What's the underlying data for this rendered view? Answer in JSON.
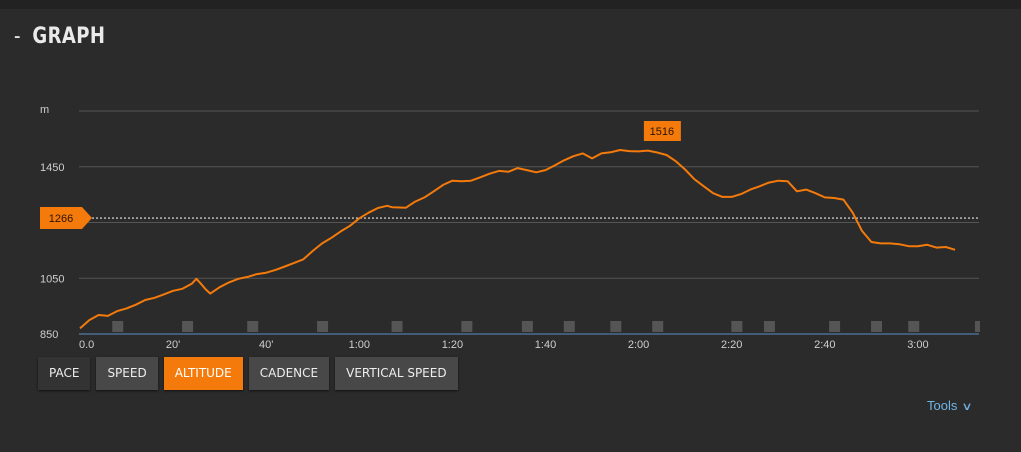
{
  "header": {
    "dash": "-",
    "title": "GRAPH"
  },
  "colors": {
    "background": "#2b2b2b",
    "line": "#f47a0b",
    "grid": "#555555",
    "baseline": "#5a8fc0",
    "marker": "#555555",
    "active_button": "#f47a0b",
    "tools_link": "#6fb5e8"
  },
  "buttons": [
    {
      "label": "PACE",
      "active": false
    },
    {
      "label": "SPEED",
      "active": false
    },
    {
      "label": "ALTITUDE",
      "active": true
    },
    {
      "label": "CADENCE",
      "active": false
    },
    {
      "label": "VERTICAL SPEED",
      "active": false
    }
  ],
  "tools": {
    "label": "Tools",
    "icon": "chevron-down-icon"
  },
  "chart_data": {
    "type": "line",
    "ylabel": "m",
    "ylim": [
      850,
      1650
    ],
    "yticks": [
      850,
      1050,
      1450
    ],
    "ytick_labels": [
      "850",
      "1050",
      "1450"
    ],
    "grid_lines": [
      1050,
      1250,
      1450,
      1650
    ],
    "xlim": [
      0,
      188
    ],
    "xticks": [
      0,
      20,
      40,
      60,
      80,
      100,
      120,
      140,
      160,
      180
    ],
    "xtick_labels": [
      "0.0",
      "20'",
      "40'",
      "1:00",
      "1:20",
      "1:40",
      "2:00",
      "2:20",
      "2:40",
      "3:00"
    ],
    "average": {
      "value": 1266,
      "label": "1266"
    },
    "max": {
      "value": 1516,
      "label": "1516",
      "x": 125
    },
    "lap_markers": [
      8,
      23,
      37,
      52,
      68,
      83,
      96,
      105,
      115,
      124,
      141,
      148,
      162,
      171,
      179,
      193
    ],
    "series": [
      {
        "x": [
          0,
          2,
          4,
          6,
          8,
          10,
          12,
          14,
          16,
          18,
          20,
          22,
          24,
          25,
          26,
          27,
          28,
          30,
          32,
          34,
          36,
          38,
          40,
          42,
          44,
          46,
          48,
          50,
          52,
          54,
          56,
          58,
          60,
          62,
          64,
          66,
          67,
          68,
          70,
          72,
          74,
          76,
          78,
          80,
          82,
          84,
          86,
          88,
          90,
          92,
          94,
          96,
          98,
          100,
          102,
          104,
          106,
          108,
          110,
          112,
          114,
          116,
          118,
          120,
          122,
          124,
          126,
          128,
          130,
          132,
          134,
          136,
          138,
          140,
          142,
          144,
          146,
          148,
          150,
          152,
          154,
          156,
          158,
          160,
          162,
          164,
          166,
          168,
          170,
          172,
          174,
          176,
          178,
          180,
          182,
          184,
          186,
          188
        ],
        "y": [
          870,
          900,
          918,
          915,
          932,
          942,
          955,
          972,
          980,
          992,
          1005,
          1012,
          1030,
          1048,
          1030,
          1010,
          995,
          1018,
          1035,
          1048,
          1055,
          1065,
          1070,
          1080,
          1092,
          1105,
          1118,
          1148,
          1175,
          1195,
          1218,
          1238,
          1265,
          1285,
          1302,
          1310,
          1305,
          1304,
          1303,
          1325,
          1340,
          1362,
          1385,
          1400,
          1398,
          1400,
          1412,
          1425,
          1435,
          1432,
          1445,
          1438,
          1430,
          1438,
          1455,
          1473,
          1488,
          1498,
          1480,
          1498,
          1502,
          1510,
          1506,
          1505,
          1508,
          1501,
          1492,
          1470,
          1440,
          1405,
          1380,
          1355,
          1342,
          1342,
          1352,
          1368,
          1380,
          1393,
          1400,
          1398,
          1362,
          1368,
          1355,
          1340,
          1338,
          1332,
          1285,
          1220,
          1180,
          1175,
          1175,
          1172,
          1165,
          1165,
          1170,
          1160,
          1162,
          1152
        ]
      }
    ]
  }
}
